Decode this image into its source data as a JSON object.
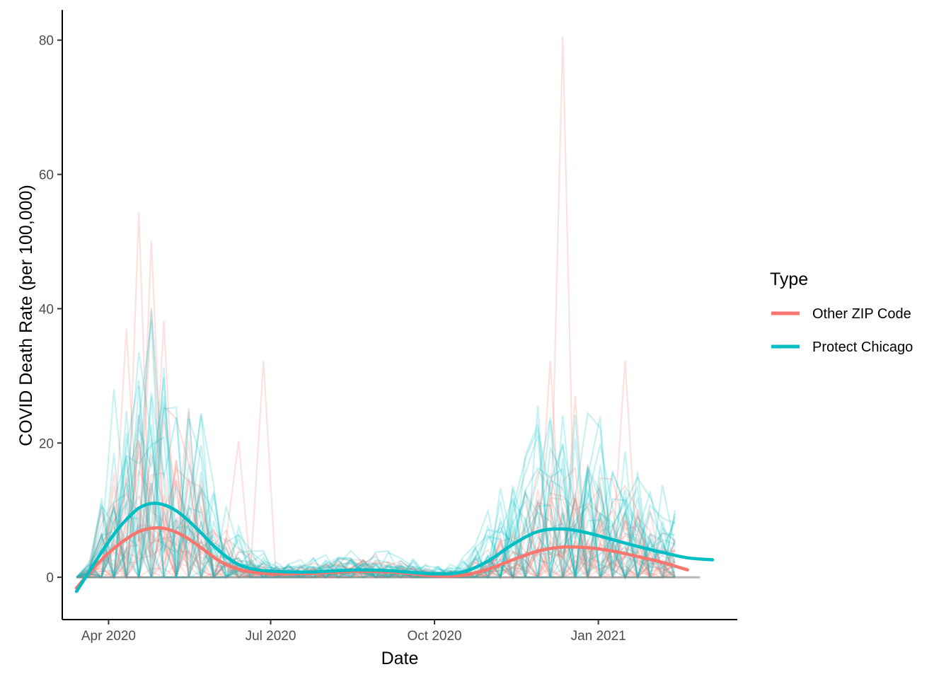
{
  "chart_data": {
    "type": "line",
    "title": "",
    "xlabel": "Date",
    "ylabel": "COVID Death Rate (per 100,000)",
    "x_range": [
      "2020-03-06",
      "2021-03-20"
    ],
    "ylim": [
      -6.3,
      84.5
    ],
    "x_ticks": [
      {
        "date": "2020-04-01",
        "label": "Apr 2020"
      },
      {
        "date": "2020-07-01",
        "label": "Jul 2020"
      },
      {
        "date": "2020-10-01",
        "label": "Oct 2020"
      },
      {
        "date": "2021-01-01",
        "label": "Jan 2021"
      }
    ],
    "y_ticks": [
      0,
      20,
      40,
      60,
      80
    ],
    "grid": false,
    "legend": {
      "title": "Type",
      "position": "right",
      "entries": [
        {
          "name": "Other ZIP Code",
          "color": "#F8766D"
        },
        {
          "name": "Protect Chicago",
          "color": "#00BFC4"
        }
      ]
    },
    "background_lines": {
      "description": "Faint weekly per-ZIP-code rates drawn behind the smoothed curves",
      "peaks_other_zip": [
        {
          "date": "2020-04-18",
          "value": 54.3
        },
        {
          "date": "2020-04-25",
          "value": 50.1
        },
        {
          "date": "2020-04-25",
          "value": 40.2
        },
        {
          "date": "2020-05-02",
          "value": 38.2
        },
        {
          "date": "2020-04-11",
          "value": 37.0
        },
        {
          "date": "2020-06-27",
          "value": 32.3
        },
        {
          "date": "2020-12-13",
          "value": 80.5
        },
        {
          "date": "2020-12-06",
          "value": 32.3
        },
        {
          "date": "2021-01-16",
          "value": 32.3
        },
        {
          "date": "2020-12-20",
          "value": 27.0
        },
        {
          "date": "2020-05-16",
          "value": 25.2
        },
        {
          "date": "2020-06-13",
          "value": 20.3
        }
      ],
      "peaks_protect_chicago": [
        {
          "date": "2020-04-18",
          "value": 33.5
        },
        {
          "date": "2020-04-04",
          "value": 28.0
        },
        {
          "date": "2020-05-09",
          "value": 25.3
        },
        {
          "date": "2020-12-06",
          "value": 23.8
        },
        {
          "date": "2020-12-27",
          "value": 16.0
        }
      ]
    },
    "series": [
      {
        "name": "Other ZIP Code",
        "color": "#F8766D",
        "points": [
          {
            "x": "2020-03-14",
            "y": -1.6
          },
          {
            "x": "2020-03-21",
            "y": 0.6
          },
          {
            "x": "2020-03-28",
            "y": 2.6
          },
          {
            "x": "2020-04-04",
            "y": 4.3
          },
          {
            "x": "2020-04-11",
            "y": 5.7
          },
          {
            "x": "2020-04-18",
            "y": 6.8
          },
          {
            "x": "2020-04-25",
            "y": 7.3
          },
          {
            "x": "2020-05-02",
            "y": 7.3
          },
          {
            "x": "2020-05-09",
            "y": 6.7
          },
          {
            "x": "2020-05-16",
            "y": 5.7
          },
          {
            "x": "2020-05-23",
            "y": 4.4
          },
          {
            "x": "2020-05-30",
            "y": 3.0
          },
          {
            "x": "2020-06-06",
            "y": 1.9
          },
          {
            "x": "2020-06-13",
            "y": 1.2
          },
          {
            "x": "2020-06-20",
            "y": 0.8
          },
          {
            "x": "2020-06-27",
            "y": 0.6
          },
          {
            "x": "2020-07-11",
            "y": 0.5
          },
          {
            "x": "2020-07-25",
            "y": 0.6
          },
          {
            "x": "2020-08-08",
            "y": 0.8
          },
          {
            "x": "2020-08-22",
            "y": 0.9
          },
          {
            "x": "2020-09-05",
            "y": 0.8
          },
          {
            "x": "2020-09-19",
            "y": 0.5
          },
          {
            "x": "2020-10-03",
            "y": 0.2
          },
          {
            "x": "2020-10-17",
            "y": 0.3
          },
          {
            "x": "2020-10-31",
            "y": 1.2
          },
          {
            "x": "2020-11-14",
            "y": 2.6
          },
          {
            "x": "2020-11-28",
            "y": 3.9
          },
          {
            "x": "2020-12-12",
            "y": 4.5
          },
          {
            "x": "2020-12-26",
            "y": 4.4
          },
          {
            "x": "2021-01-09",
            "y": 3.9
          },
          {
            "x": "2021-01-23",
            "y": 3.1
          },
          {
            "x": "2021-02-06",
            "y": 2.2
          },
          {
            "x": "2021-02-20",
            "y": 1.1
          }
        ]
      },
      {
        "name": "Protect Chicago",
        "color": "#00BFC4",
        "points": [
          {
            "x": "2020-03-14",
            "y": -2.1
          },
          {
            "x": "2020-03-21",
            "y": 0.8
          },
          {
            "x": "2020-03-28",
            "y": 3.7
          },
          {
            "x": "2020-04-04",
            "y": 6.4
          },
          {
            "x": "2020-04-11",
            "y": 8.6
          },
          {
            "x": "2020-04-18",
            "y": 10.3
          },
          {
            "x": "2020-04-25",
            "y": 11.0
          },
          {
            "x": "2020-05-02",
            "y": 10.8
          },
          {
            "x": "2020-05-09",
            "y": 9.9
          },
          {
            "x": "2020-05-16",
            "y": 8.4
          },
          {
            "x": "2020-05-23",
            "y": 6.6
          },
          {
            "x": "2020-05-30",
            "y": 4.7
          },
          {
            "x": "2020-06-06",
            "y": 3.1
          },
          {
            "x": "2020-06-13",
            "y": 1.9
          },
          {
            "x": "2020-06-20",
            "y": 1.3
          },
          {
            "x": "2020-06-27",
            "y": 1.0
          },
          {
            "x": "2020-07-11",
            "y": 0.8
          },
          {
            "x": "2020-07-25",
            "y": 0.8
          },
          {
            "x": "2020-08-08",
            "y": 1.0
          },
          {
            "x": "2020-08-22",
            "y": 1.1
          },
          {
            "x": "2020-09-05",
            "y": 1.0
          },
          {
            "x": "2020-09-19",
            "y": 0.7
          },
          {
            "x": "2020-10-03",
            "y": 0.5
          },
          {
            "x": "2020-10-17",
            "y": 0.8
          },
          {
            "x": "2020-10-31",
            "y": 2.4
          },
          {
            "x": "2020-11-14",
            "y": 4.9
          },
          {
            "x": "2020-11-28",
            "y": 6.8
          },
          {
            "x": "2020-12-12",
            "y": 7.2
          },
          {
            "x": "2020-12-26",
            "y": 6.6
          },
          {
            "x": "2021-01-09",
            "y": 5.6
          },
          {
            "x": "2021-01-23",
            "y": 4.6
          },
          {
            "x": "2021-02-06",
            "y": 3.7
          },
          {
            "x": "2021-02-20",
            "y": 2.9
          },
          {
            "x": "2021-03-06",
            "y": 2.6
          }
        ]
      }
    ]
  }
}
